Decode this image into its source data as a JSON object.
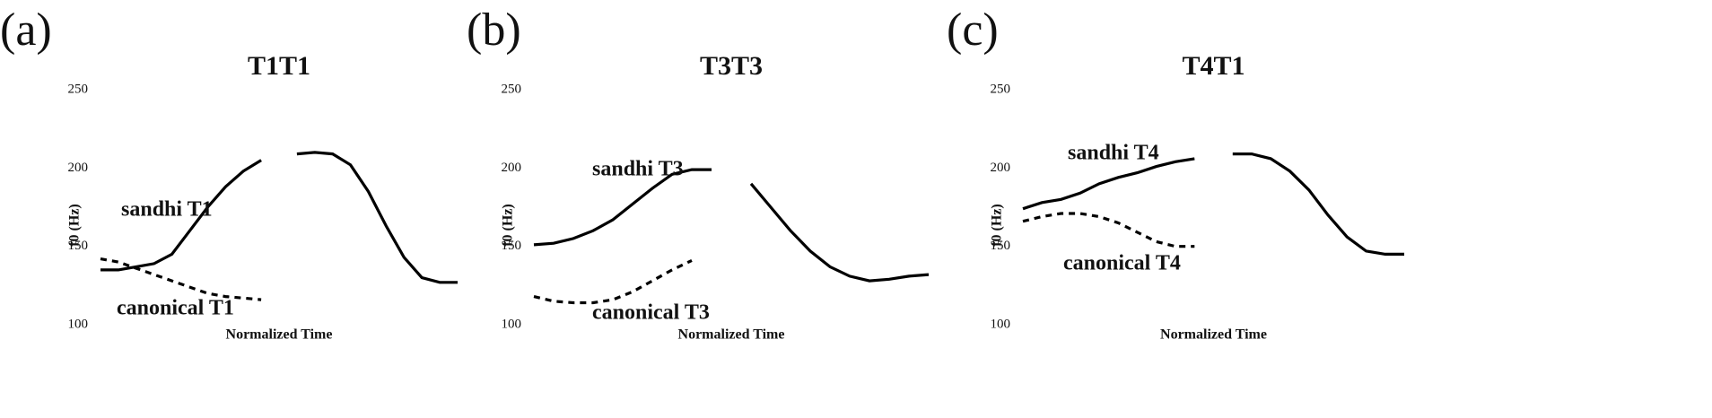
{
  "chart_data": [
    {
      "type": "line",
      "panel_label": "(a)",
      "title": "T1T1",
      "x_label": "Normalized Time",
      "y_label": "f0 (Hz)",
      "xlim": [
        0,
        1
      ],
      "ylim": [
        100,
        250
      ],
      "yticks": [
        100,
        150,
        200,
        250
      ],
      "x": [
        0,
        0.05,
        0.1,
        0.15,
        0.2,
        0.25,
        0.3,
        0.35,
        0.4,
        0.45,
        0.5,
        0.55,
        0.6,
        0.65,
        0.7,
        0.75,
        0.8,
        0.85,
        0.9,
        0.95,
        1
      ],
      "series": [
        {
          "name": "sandhi T1",
          "color": "#000000",
          "style": "solid",
          "values": [
            135,
            135,
            137,
            139,
            145,
            160,
            175,
            188,
            198,
            205,
            null,
            209,
            210,
            209,
            202,
            185,
            163,
            143,
            130,
            127,
            127
          ]
        },
        {
          "name": "canonical T1",
          "color": "#000000",
          "style": "dashed",
          "values": [
            142,
            140,
            136,
            132,
            128,
            124,
            120,
            118,
            117,
            116,
            null,
            null,
            null,
            null,
            null,
            null,
            null,
            null,
            null,
            null,
            null
          ]
        }
      ]
    },
    {
      "type": "line",
      "panel_label": "(b)",
      "title": "T3T3",
      "x_label": "Normalized Time",
      "y_label": "f0 (Hz)",
      "xlim": [
        0,
        1
      ],
      "ylim": [
        100,
        250
      ],
      "yticks": [
        100,
        150,
        200,
        250
      ],
      "x": [
        0,
        0.05,
        0.1,
        0.15,
        0.2,
        0.25,
        0.3,
        0.35,
        0.4,
        0.45,
        0.5,
        0.55,
        0.6,
        0.65,
        0.7,
        0.75,
        0.8,
        0.85,
        0.9,
        0.95,
        1
      ],
      "series": [
        {
          "name": "sandhi T3",
          "color": "#000000",
          "style": "solid",
          "values": [
            151,
            152,
            155,
            160,
            167,
            177,
            187,
            196,
            199,
            199,
            null,
            190,
            175,
            160,
            147,
            137,
            131,
            128,
            129,
            131,
            132
          ]
        },
        {
          "name": "canonical T3",
          "color": "#000000",
          "style": "dashed",
          "values": [
            118,
            115,
            114,
            114,
            116,
            121,
            128,
            135,
            141,
            null,
            null,
            null,
            null,
            null,
            null,
            null,
            null,
            null,
            null,
            null,
            null
          ]
        }
      ]
    },
    {
      "type": "line",
      "panel_label": "(c)",
      "title": "T4T1",
      "x_label": "Normalized Time",
      "y_label": "f0 (Hz)",
      "xlim": [
        0,
        1
      ],
      "ylim": [
        100,
        250
      ],
      "yticks": [
        100,
        150,
        200,
        250
      ],
      "x": [
        0,
        0.05,
        0.1,
        0.15,
        0.2,
        0.25,
        0.3,
        0.35,
        0.4,
        0.45,
        0.5,
        0.55,
        0.6,
        0.65,
        0.7,
        0.75,
        0.8,
        0.85,
        0.9,
        0.95,
        1
      ],
      "series": [
        {
          "name": "sandhi T4",
          "color": "#000000",
          "style": "solid",
          "values": [
            174,
            178,
            180,
            184,
            190,
            194,
            197,
            201,
            204,
            206,
            null,
            209,
            209,
            206,
            198,
            186,
            170,
            156,
            147,
            145,
            145
          ]
        },
        {
          "name": "canonical T4",
          "color": "#000000",
          "style": "dashed",
          "values": [
            166,
            169,
            171,
            171,
            169,
            165,
            159,
            153,
            150,
            150,
            null,
            null,
            null,
            null,
            null,
            null,
            null,
            null,
            null,
            null,
            null
          ]
        }
      ]
    }
  ]
}
